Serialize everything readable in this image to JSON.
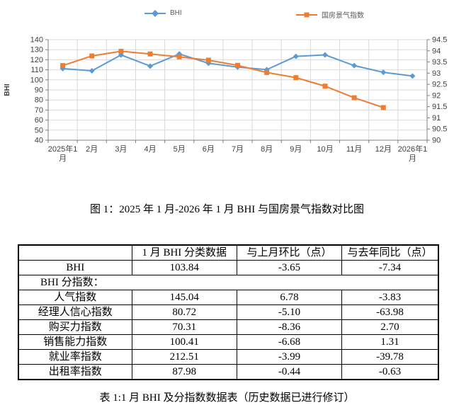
{
  "page": {
    "figure_caption": "图 1：2025 年 1 月-2026 年 1 月 BHI 与国房景气指数对比图"
  },
  "chart_data": {
    "type": "line",
    "title": "图 1：2025 年 1 月-2026 年 1 月 BHI 与国房景气指数对比图",
    "grid": true,
    "legend_position": "top",
    "x_categories": [
      "2025年1月",
      "2月",
      "3月",
      "4月",
      "5月",
      "6月",
      "7月",
      "8月",
      "9月",
      "10月",
      "11月",
      "12月",
      "2026年1月"
    ],
    "left_axis": {
      "label": "BHI",
      "min": 40,
      "max": 140,
      "step": 10
    },
    "right_axis": {
      "label": "",
      "min": 90,
      "max": 94.5,
      "step": 0.5
    },
    "series": [
      {
        "name": "BHI",
        "axis": "left",
        "color": "#5B9BD5",
        "marker": "diamond",
        "values": [
          111.18,
          109.0,
          124.8,
          113.7,
          125.8,
          116.5,
          112.7,
          110.2,
          123.4,
          124.9,
          114.2,
          107.49,
          103.84
        ]
      },
      {
        "name": "国房景气指数",
        "axis": "right",
        "color": "#ED7D31",
        "marker": "square",
        "values": [
          93.34,
          93.77,
          93.98,
          93.86,
          93.73,
          93.58,
          93.35,
          93.03,
          92.8,
          92.42,
          91.9,
          91.46,
          null
        ]
      }
    ]
  },
  "table": {
    "headers": [
      "",
      "1 月 BHI 分类数据",
      "与上月环比（点）",
      "与去年同比（点）"
    ],
    "rows": [
      {
        "type": "data",
        "label": "BHI",
        "cells": [
          "103.84",
          "-3.65",
          "-7.34"
        ]
      },
      {
        "type": "section",
        "label": "BHI 分指数：",
        "cells": []
      },
      {
        "type": "data",
        "label": "人气指数",
        "cells": [
          "145.04",
          "6.78",
          "-3.83"
        ]
      },
      {
        "type": "data",
        "label": "经理人信心指数",
        "cells": [
          "80.72",
          "-5.10",
          "-63.98"
        ]
      },
      {
        "type": "data",
        "label": "购买力指数",
        "cells": [
          "70.31",
          "-8.36",
          "2.70"
        ]
      },
      {
        "type": "data",
        "label": "销售能力指数",
        "cells": [
          "100.41",
          "-6.68",
          "1.31"
        ]
      },
      {
        "type": "data",
        "label": "就业率指数",
        "cells": [
          "212.51",
          "-3.99",
          "-39.78"
        ]
      },
      {
        "type": "data",
        "label": "出租率指数",
        "cells": [
          "87.98",
          "-0.44",
          "-0.63"
        ]
      }
    ],
    "caption": "表 1:1 月 BHI 及分指数数据表（历史数据已进行修订）"
  },
  "style": {
    "grid_color": "#D9D9D9",
    "axis_color": "#808080",
    "axis_text_color": "#404040",
    "legend_text_color": "#595959"
  }
}
